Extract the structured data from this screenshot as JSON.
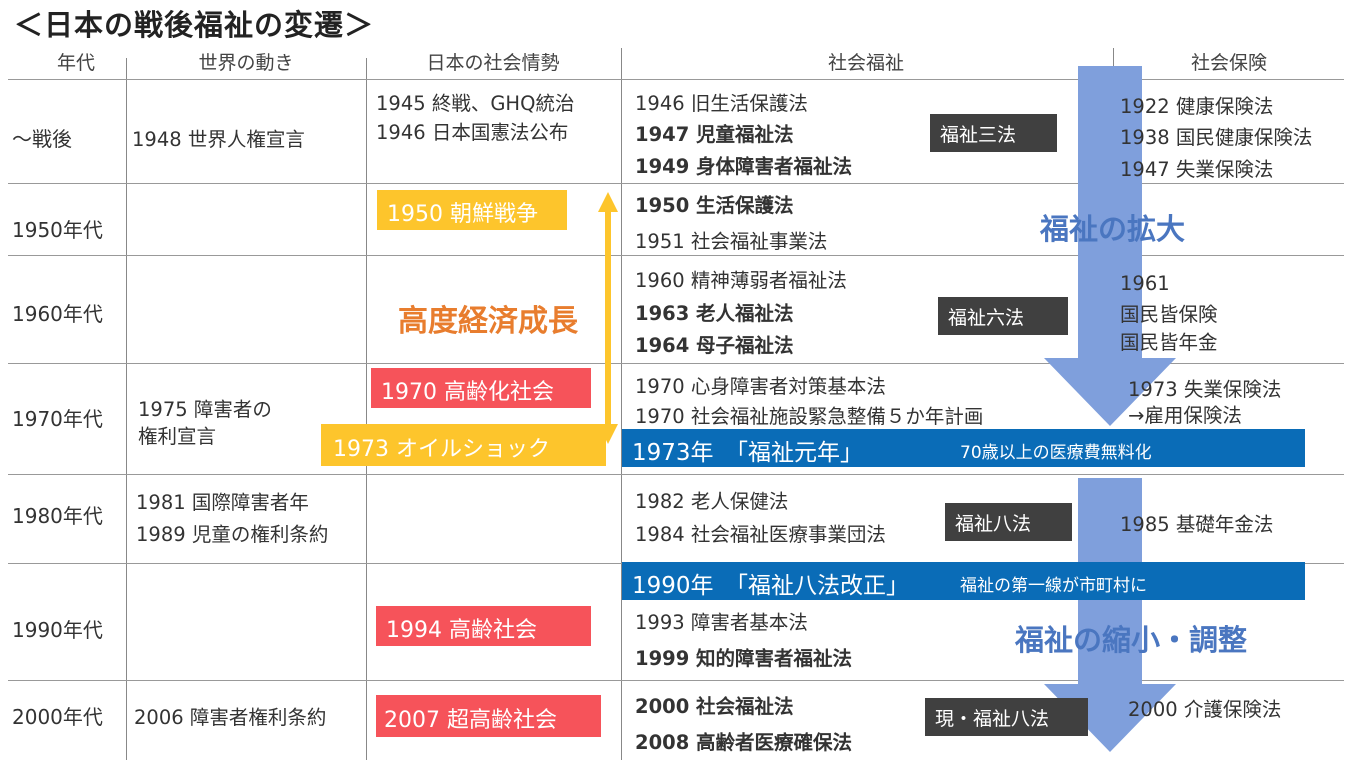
{
  "title": "＜日本の戦後福祉の変遷＞",
  "headers": {
    "era": "年代",
    "world": "世界の動き",
    "japan": "日本の社会情勢",
    "welfare": "社会福祉",
    "insurance": "社会保険"
  },
  "eras": [
    "～戦後",
    "1950年代",
    "1960年代",
    "1970年代",
    "1980年代",
    "1990年代",
    "2000年代"
  ],
  "world": {
    "postwar": "1948 世界人権宣言",
    "e1970_1": "1975 障害者の",
    "e1970_2": "権利宣言",
    "e1980_1": "1981 国際障害者年",
    "e1980_2": "1989 児童の権利条約",
    "e2000": "2006 障害者権利条約"
  },
  "japan": {
    "postwar_1": "1945 終戦、GHQ統治",
    "postwar_2": "1946 日本国憲法公布",
    "korea": "1950 朝鮮戦争",
    "growth": "高度経済成長",
    "aging": "1970 高齢化社会",
    "oil": "1973 オイルショック",
    "aged": "1994 高齢社会",
    "superaged": "2007 超高齢社会"
  },
  "welfare": {
    "w1946": "1946 旧生活保護法",
    "w1947": "1947 児童福祉法",
    "w1949": "1949 身体障害者福祉法",
    "w1950": "1950 生活保護法",
    "w1951": "1951 社会福祉事業法",
    "w1960": "1960 精神薄弱者福祉法",
    "w1963": "1963 老人福祉法",
    "w1964": "1964 母子福祉法",
    "w1970a": "1970 心身障害者対策基本法",
    "w1970b": "1970 社会福祉施設緊急整備５か年計画",
    "w1982": "1982 老人保健法",
    "w1984": "1984 社会福祉医療事業団法",
    "w1993": "1993 障害者基本法",
    "w1999": "1999 知的障害者福祉法",
    "w2000": "2000 社会福祉法",
    "w2008": "2008 高齢者医療確保法",
    "three": "福祉三法",
    "six": "福祉六法",
    "eight": "福祉八法",
    "eight_now": "現・福祉八法"
  },
  "bands": {
    "b1973_main": "1973年　「福祉元年」",
    "b1973_sub": "70歳以上の医療費無料化",
    "b1990_main": "1990年　「福祉八法改正」",
    "b1990_sub": "福祉の第一線が市町村に"
  },
  "arrows": {
    "expand": "福祉の拡大",
    "shrink": "福祉の縮小・調整"
  },
  "insurance": {
    "i1922": "1922 健康保険法",
    "i1938": "1938 国民健康保険法",
    "i1947": "1947 失業保険法",
    "i1961a": "1961",
    "i1961b": "国民皆保険",
    "i1961c": "国民皆年金",
    "i1973a": "1973 失業保険法",
    "i1973b": "→雇用保険法",
    "i1985": "1985 基礎年金法",
    "i2000": "2000 介護保険法"
  },
  "colors": {
    "yellow": "#FDC52C",
    "red": "#F6535A",
    "dark": "#404040",
    "blue_band": "#0A6CB7",
    "arrow": "#7F9FDC",
    "orange": "#E87D2E"
  }
}
